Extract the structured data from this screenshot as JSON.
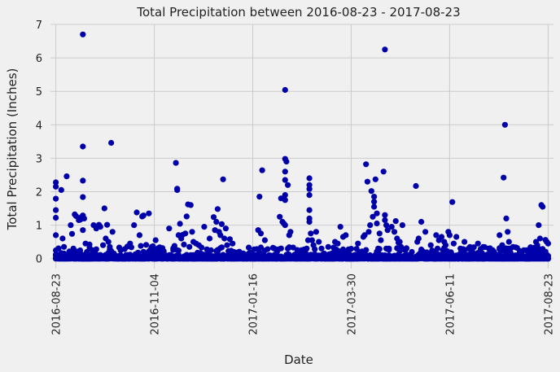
{
  "chart_data": {
    "type": "scatter",
    "title": "Total Precipitation between 2016-08-23 - 2017-08-23",
    "xlabel": "Date",
    "ylabel": "Total Precipitation (Inches)",
    "x_tick_labels": [
      "2016-08-23",
      "2016-11-04",
      "2017-01-16",
      "2017-03-30",
      "2017-06-11",
      "2017-08-23"
    ],
    "y_tick_labels": [
      "0",
      "1",
      "2",
      "3",
      "4",
      "5",
      "6",
      "7"
    ],
    "xlim": [
      "2016-08-19",
      "2017-08-27"
    ],
    "ylim": [
      -0.3,
      7.0
    ],
    "grid": true,
    "marker_color": "#0000aa",
    "points": [
      [
        "2016-08-23",
        2.28
      ],
      [
        "2016-08-23",
        2.15
      ],
      [
        "2016-08-23",
        1.79
      ],
      [
        "2016-08-23",
        1.45
      ],
      [
        "2016-08-23",
        1.22
      ],
      [
        "2016-08-23",
        0.7
      ],
      [
        "2016-08-24",
        0.08
      ],
      [
        "2016-08-26",
        0.01
      ],
      [
        "2016-08-27",
        2.05
      ],
      [
        "2016-08-28",
        0.6
      ],
      [
        "2016-08-29",
        0.35
      ],
      [
        "2016-08-30",
        0.05
      ],
      [
        "2016-08-31",
        2.46
      ],
      [
        "2016-09-01",
        0.02
      ],
      [
        "2016-09-02",
        0.19
      ],
      [
        "2016-09-03",
        1.0
      ],
      [
        "2016-09-04",
        0.74
      ],
      [
        "2016-09-05",
        0.3
      ],
      [
        "2016-09-06",
        1.32
      ],
      [
        "2016-09-07",
        1.27
      ],
      [
        "2016-09-08",
        0.21
      ],
      [
        "2016-09-09",
        1.15
      ],
      [
        "2016-09-10",
        1.16
      ],
      [
        "2016-09-11",
        1.24
      ],
      [
        "2016-09-12",
        6.7
      ],
      [
        "2016-09-12",
        3.35
      ],
      [
        "2016-09-12",
        2.33
      ],
      [
        "2016-09-12",
        1.84
      ],
      [
        "2016-09-12",
        1.29
      ],
      [
        "2016-09-12",
        0.85
      ],
      [
        "2016-09-13",
        1.2
      ],
      [
        "2016-09-14",
        0.45
      ],
      [
        "2016-09-15",
        0.2
      ],
      [
        "2016-09-17",
        0.42
      ],
      [
        "2016-09-19",
        0.15
      ],
      [
        "2016-09-20",
        1.0
      ],
      [
        "2016-09-22",
        0.9
      ],
      [
        "2016-09-24",
        1.01
      ],
      [
        "2016-09-25",
        0.95
      ],
      [
        "2016-09-27",
        0.4
      ],
      [
        "2016-09-28",
        1.5
      ],
      [
        "2016-09-29",
        0.6
      ],
      [
        "2016-09-30",
        1.01
      ],
      [
        "2016-10-01",
        0.5
      ],
      [
        "2016-10-02",
        0.35
      ],
      [
        "2016-10-03",
        3.46
      ],
      [
        "2016-10-04",
        0.8
      ],
      [
        "2016-10-06",
        0.1
      ],
      [
        "2016-10-09",
        0.33
      ],
      [
        "2016-10-10",
        0.25
      ],
      [
        "2016-10-13",
        0.03
      ],
      [
        "2016-10-15",
        0.36
      ],
      [
        "2016-10-17",
        0.45
      ],
      [
        "2016-10-20",
        1.0
      ],
      [
        "2016-10-22",
        1.38
      ],
      [
        "2016-10-24",
        0.7
      ],
      [
        "2016-10-25",
        0.38
      ],
      [
        "2016-10-26",
        1.26
      ],
      [
        "2016-10-27",
        1.29
      ],
      [
        "2016-10-29",
        0.41
      ],
      [
        "2016-10-31",
        1.35
      ],
      [
        "2016-11-02",
        0.05
      ],
      [
        "2016-11-03",
        0.37
      ],
      [
        "2016-11-05",
        0.55
      ],
      [
        "2016-11-08",
        0.2
      ],
      [
        "2016-11-11",
        0.15
      ],
      [
        "2016-11-15",
        0.9
      ],
      [
        "2016-11-17",
        0.05
      ],
      [
        "2016-11-19",
        0.38
      ],
      [
        "2016-11-20",
        2.86
      ],
      [
        "2016-11-21",
        2.09
      ],
      [
        "2016-11-21",
        2.05
      ],
      [
        "2016-11-22",
        0.7
      ],
      [
        "2016-11-23",
        1.04
      ],
      [
        "2016-11-24",
        0.6
      ],
      [
        "2016-11-25",
        0.71
      ],
      [
        "2016-11-26",
        0.42
      ],
      [
        "2016-11-27",
        0.75
      ],
      [
        "2016-11-28",
        1.26
      ],
      [
        "2016-11-29",
        1.62
      ],
      [
        "2016-11-30",
        0.35
      ],
      [
        "2016-12-01",
        1.6
      ],
      [
        "2016-12-02",
        0.8
      ],
      [
        "2016-12-03",
        0.5
      ],
      [
        "2016-12-05",
        0.45
      ],
      [
        "2016-12-07",
        0.4
      ],
      [
        "2016-12-09",
        0.33
      ],
      [
        "2016-12-11",
        0.95
      ],
      [
        "2016-12-13",
        0.12
      ],
      [
        "2016-12-15",
        0.6
      ],
      [
        "2016-12-16",
        0.25
      ],
      [
        "2016-12-18",
        1.24
      ],
      [
        "2016-12-19",
        0.85
      ],
      [
        "2016-12-20",
        1.1
      ],
      [
        "2016-12-21",
        1.48
      ],
      [
        "2016-12-22",
        0.8
      ],
      [
        "2016-12-23",
        0.7
      ],
      [
        "2016-12-24",
        1.03
      ],
      [
        "2016-12-25",
        2.37
      ],
      [
        "2016-12-26",
        0.6
      ],
      [
        "2016-12-27",
        0.9
      ],
      [
        "2016-12-28",
        0.4
      ],
      [
        "2016-12-30",
        0.58
      ],
      [
        "2017-01-01",
        0.45
      ],
      [
        "2017-01-05",
        0.08
      ],
      [
        "2017-01-10",
        0.02
      ],
      [
        "2017-01-15",
        0.03
      ],
      [
        "2017-01-18",
        0.1
      ],
      [
        "2017-01-20",
        0.85
      ],
      [
        "2017-01-21",
        1.85
      ],
      [
        "2017-01-22",
        0.75
      ],
      [
        "2017-01-23",
        2.64
      ],
      [
        "2017-01-25",
        0.55
      ],
      [
        "2017-01-28",
        0.1
      ],
      [
        "2017-02-01",
        0.3
      ],
      [
        "2017-02-03",
        0.2
      ],
      [
        "2017-02-05",
        1.25
      ],
      [
        "2017-02-06",
        1.8
      ],
      [
        "2017-02-07",
        1.1
      ],
      [
        "2017-02-08",
        1.05
      ],
      [
        "2017-02-09",
        5.04
      ],
      [
        "2017-02-09",
        2.98
      ],
      [
        "2017-02-09",
        2.6
      ],
      [
        "2017-02-09",
        2.35
      ],
      [
        "2017-02-09",
        1.9
      ],
      [
        "2017-02-09",
        1.75
      ],
      [
        "2017-02-09",
        1.0
      ],
      [
        "2017-02-10",
        2.9
      ],
      [
        "2017-02-11",
        2.2
      ],
      [
        "2017-02-12",
        0.7
      ],
      [
        "2017-02-13",
        0.8
      ],
      [
        "2017-02-15",
        0.33
      ],
      [
        "2017-02-18",
        0.1
      ],
      [
        "2017-02-20",
        0.15
      ],
      [
        "2017-02-25",
        0.3
      ],
      [
        "2017-02-26",
        0.55
      ],
      [
        "2017-02-27",
        2.4
      ],
      [
        "2017-02-27",
        2.2
      ],
      [
        "2017-02-27",
        2.08
      ],
      [
        "2017-02-27",
        1.9
      ],
      [
        "2017-02-27",
        1.45
      ],
      [
        "2017-02-27",
        1.2
      ],
      [
        "2017-02-27",
        1.1
      ],
      [
        "2017-02-28",
        0.75
      ],
      [
        "2017-03-01",
        0.55
      ],
      [
        "2017-03-02",
        0.4
      ],
      [
        "2017-03-04",
        0.8
      ],
      [
        "2017-03-06",
        0.5
      ],
      [
        "2017-03-08",
        0.3
      ],
      [
        "2017-03-10",
        0.15
      ],
      [
        "2017-03-13",
        0.35
      ],
      [
        "2017-03-16",
        0.05
      ],
      [
        "2017-03-18",
        0.5
      ],
      [
        "2017-03-20",
        0.45
      ],
      [
        "2017-03-22",
        0.95
      ],
      [
        "2017-03-24",
        0.65
      ],
      [
        "2017-03-26",
        0.7
      ],
      [
        "2017-03-28",
        0.2
      ],
      [
        "2017-04-01",
        0.1
      ],
      [
        "2017-04-04",
        0.45
      ],
      [
        "2017-04-08",
        0.65
      ],
      [
        "2017-04-09",
        0.7
      ],
      [
        "2017-04-10",
        2.82
      ],
      [
        "2017-04-11",
        2.3
      ],
      [
        "2017-04-12",
        0.8
      ],
      [
        "2017-04-13",
        1.0
      ],
      [
        "2017-04-14",
        2.02
      ],
      [
        "2017-04-15",
        1.25
      ],
      [
        "2017-04-16",
        1.85
      ],
      [
        "2017-04-16",
        1.7
      ],
      [
        "2017-04-16",
        1.55
      ],
      [
        "2017-04-17",
        2.37
      ],
      [
        "2017-04-18",
        1.35
      ],
      [
        "2017-04-18",
        1.05
      ],
      [
        "2017-04-20",
        0.75
      ],
      [
        "2017-04-21",
        0.55
      ],
      [
        "2017-04-23",
        2.6
      ],
      [
        "2017-04-24",
        6.25
      ],
      [
        "2017-04-24",
        1.3
      ],
      [
        "2017-04-24",
        1.15
      ],
      [
        "2017-04-25",
        1.0
      ],
      [
        "2017-04-26",
        0.85
      ],
      [
        "2017-04-27",
        0.3
      ],
      [
        "2017-04-29",
        0.95
      ],
      [
        "2017-05-01",
        0.8
      ],
      [
        "2017-05-02",
        1.12
      ],
      [
        "2017-05-03",
        0.6
      ],
      [
        "2017-05-04",
        0.48
      ],
      [
        "2017-05-05",
        0.5
      ],
      [
        "2017-05-07",
        1.0
      ],
      [
        "2017-05-10",
        0.3
      ],
      [
        "2017-05-14",
        0.2
      ],
      [
        "2017-05-17",
        2.17
      ],
      [
        "2017-05-18",
        0.5
      ],
      [
        "2017-05-19",
        0.6
      ],
      [
        "2017-05-21",
        1.1
      ],
      [
        "2017-05-24",
        0.8
      ],
      [
        "2017-05-28",
        0.4
      ],
      [
        "2017-06-01",
        0.7
      ],
      [
        "2017-06-03",
        0.55
      ],
      [
        "2017-06-05",
        0.65
      ],
      [
        "2017-06-07",
        0.5
      ],
      [
        "2017-06-08",
        0.4
      ],
      [
        "2017-06-10",
        0.8
      ],
      [
        "2017-06-11",
        0.7
      ],
      [
        "2017-06-13",
        1.69
      ],
      [
        "2017-06-14",
        0.45
      ],
      [
        "2017-06-16",
        0.65
      ],
      [
        "2017-06-19",
        0.3
      ],
      [
        "2017-06-22",
        0.5
      ],
      [
        "2017-06-25",
        0.3
      ],
      [
        "2017-06-28",
        0.2
      ],
      [
        "2017-07-02",
        0.45
      ],
      [
        "2017-07-06",
        0.35
      ],
      [
        "2017-07-10",
        0.15
      ],
      [
        "2017-07-13",
        0.25
      ],
      [
        "2017-07-15",
        0.1
      ],
      [
        "2017-07-18",
        0.7
      ],
      [
        "2017-07-20",
        0.4
      ],
      [
        "2017-07-21",
        2.42
      ],
      [
        "2017-07-22",
        4.0
      ],
      [
        "2017-07-23",
        1.2
      ],
      [
        "2017-07-24",
        0.8
      ],
      [
        "2017-07-25",
        0.5
      ],
      [
        "2017-07-26",
        0.2
      ],
      [
        "2017-07-28",
        0.35
      ],
      [
        "2017-07-30",
        0.1
      ],
      [
        "2017-08-02",
        0.2
      ],
      [
        "2017-08-05",
        0.05
      ],
      [
        "2017-08-07",
        0.25
      ],
      [
        "2017-08-10",
        0.15
      ],
      [
        "2017-08-12",
        0.3
      ],
      [
        "2017-08-14",
        0.5
      ],
      [
        "2017-08-15",
        0.4
      ],
      [
        "2017-08-16",
        1.0
      ],
      [
        "2017-08-17",
        0.6
      ],
      [
        "2017-08-18",
        1.6
      ],
      [
        "2017-08-19",
        1.55
      ],
      [
        "2017-08-20",
        0.1
      ],
      [
        "2017-08-21",
        0.56
      ],
      [
        "2017-08-22",
        0.5
      ],
      [
        "2017-08-23",
        0.45
      ],
      [
        "2017-08-23",
        0.08
      ]
    ]
  }
}
